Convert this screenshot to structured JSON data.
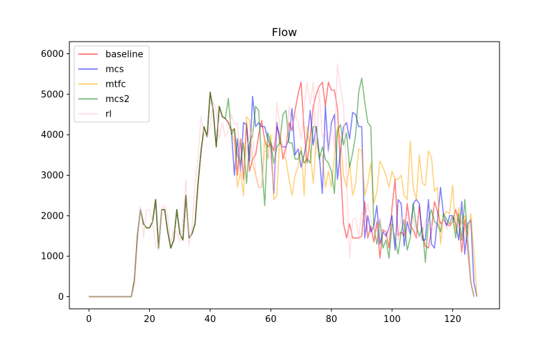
{
  "chart_data": {
    "type": "line",
    "title": "Flow",
    "xlabel": "",
    "ylabel": "",
    "xlim": [
      -6.45,
      135.45
    ],
    "ylim": [
      -300,
      6300
    ],
    "xticks": [
      0,
      20,
      40,
      60,
      80,
      100,
      120
    ],
    "yticks": [
      0,
      1000,
      2000,
      3000,
      4000,
      5000,
      6000
    ],
    "grid": false,
    "legend_position": "top-left",
    "series": [
      {
        "name": "baseline",
        "color": "#ff0000",
        "alpha": 0.5,
        "values": [
          0,
          0,
          0,
          0,
          0,
          0,
          0,
          0,
          0,
          0,
          0,
          0,
          0,
          0,
          0,
          400,
          1500,
          2150,
          1800,
          1700,
          1700,
          1850,
          2400,
          1200,
          2150,
          2150,
          1600,
          1200,
          1400,
          2150,
          1550,
          1400,
          2500,
          1450,
          1550,
          1800,
          2800,
          3600,
          4200,
          3950,
          5050,
          4600,
          3700,
          4700,
          4450,
          4400,
          4300,
          4100,
          4150,
          3000,
          3900,
          2900,
          4300,
          3100,
          3400,
          3500,
          4000,
          4350,
          3850,
          3700,
          3800,
          3600,
          4200,
          4000,
          3400,
          3700,
          4300,
          4100,
          4600,
          5000,
          5300,
          4100,
          3300,
          3900,
          4700,
          5000,
          5200,
          5300,
          4700,
          5300,
          5100,
          5100,
          4650,
          3200,
          1800,
          1450,
          1800,
          1450,
          1450,
          1450,
          1500,
          2350,
          1450,
          1750,
          1350,
          1850,
          950,
          1650,
          1600,
          1200,
          2200,
          2900,
          1500,
          1600,
          1500,
          2300,
          1750,
          1650,
          1450,
          2250,
          1550,
          1250,
          1200,
          1650,
          2350,
          2100,
          1800,
          1900,
          1800,
          1750,
          1850,
          2150,
          1850,
          1100,
          1900,
          1150,
          350,
          0
        ]
      },
      {
        "name": "mcs",
        "color": "#0000ff",
        "alpha": 0.5,
        "values": [
          0,
          0,
          0,
          0,
          0,
          0,
          0,
          0,
          0,
          0,
          0,
          0,
          0,
          0,
          0,
          400,
          1500,
          2150,
          1800,
          1700,
          1700,
          1850,
          2400,
          1200,
          2150,
          2150,
          1600,
          1200,
          1400,
          2150,
          1550,
          1400,
          2500,
          1450,
          1550,
          1800,
          2800,
          3600,
          4200,
          3950,
          5050,
          4600,
          3700,
          4700,
          4450,
          4400,
          4300,
          4100,
          3000,
          3900,
          3100,
          4300,
          4250,
          3350,
          4950,
          4200,
          4300,
          4200,
          4200,
          3900,
          3700,
          2550,
          4300,
          3800,
          3700,
          3700,
          3900,
          4650,
          3500,
          3650,
          3200,
          3500,
          3900,
          4600,
          3750,
          4200,
          3500,
          2550,
          4700,
          3600,
          4300,
          4500,
          2900,
          3600,
          4200,
          4300,
          3900,
          4550,
          4500,
          4200,
          4200,
          1450,
          2000,
          1600,
          1750,
          2250,
          1300,
          1600,
          1500,
          1700,
          2000,
          1150,
          2400,
          2300,
          1250,
          1850,
          1550,
          2300,
          2400,
          2300,
          1400,
          1400,
          2400,
          1300,
          1200,
          1900,
          2700,
          2000,
          1750,
          2000,
          2000,
          1800,
          1400,
          2350,
          1050,
          1800,
          1900,
          350,
          0
        ]
      },
      {
        "name": "mtfc",
        "color": "#ffa500",
        "alpha": 0.5,
        "values": [
          0,
          0,
          0,
          0,
          0,
          0,
          0,
          0,
          0,
          0,
          0,
          0,
          0,
          0,
          0,
          400,
          1500,
          2150,
          1800,
          1700,
          1700,
          1850,
          2400,
          1200,
          2150,
          2150,
          1600,
          1200,
          1400,
          2150,
          1550,
          1400,
          2500,
          1450,
          1550,
          1800,
          2800,
          3600,
          4200,
          3950,
          5050,
          4600,
          3700,
          4700,
          4450,
          4400,
          4300,
          4100,
          3800,
          2700,
          3100,
          2500,
          4450,
          4350,
          3300,
          3000,
          2700,
          2700,
          3900,
          3400,
          4000,
          2400,
          2500,
          4000,
          3500,
          3400,
          2900,
          2500,
          3000,
          3200,
          3700,
          2500,
          4200,
          3600,
          2800,
          3900,
          3500,
          3500,
          2700,
          3100,
          2700,
          3500,
          4200,
          3900,
          3000,
          2700,
          3300,
          2500,
          2800,
          3650,
          3600,
          2500,
          2800,
          3300,
          2300,
          2600,
          3350,
          3200,
          3000,
          2700,
          3100,
          2900,
          2900,
          3000,
          2500,
          2400,
          3850,
          2700,
          2400,
          3500,
          2800,
          2750,
          3600,
          3450,
          2600,
          2700,
          1300,
          2000,
          2100,
          2050,
          2750,
          1600,
          2200,
          1800,
          2000,
          1500,
          2050,
          1100,
          0
        ]
      },
      {
        "name": "mcs2",
        "color": "#008000",
        "alpha": 0.5,
        "values": [
          0,
          0,
          0,
          0,
          0,
          0,
          0,
          0,
          0,
          0,
          0,
          0,
          0,
          0,
          0,
          400,
          1500,
          2150,
          1800,
          1700,
          1700,
          1850,
          2400,
          1200,
          2150,
          2150,
          1600,
          1200,
          1400,
          2150,
          1550,
          1400,
          2500,
          1450,
          1550,
          1800,
          2800,
          3600,
          4200,
          3950,
          5050,
          4600,
          3700,
          4700,
          4450,
          4400,
          4900,
          4000,
          4150,
          3500,
          3300,
          3800,
          2800,
          3800,
          4000,
          4700,
          4600,
          3300,
          2250,
          4050,
          3800,
          3300,
          3700,
          3800,
          4500,
          4600,
          3800,
          3800,
          3400,
          3400,
          3600,
          3300,
          3400,
          3300,
          4200,
          4200,
          3400,
          3700,
          3400,
          3300,
          3100,
          2550,
          4100,
          4250,
          3750,
          4050,
          3200,
          3550,
          4000,
          5050,
          5400,
          4800,
          4300,
          4200,
          1700,
          1300,
          1900,
          1200,
          1400,
          950,
          1800,
          1400,
          1050,
          1600,
          1900,
          1150,
          1450,
          2300,
          1750,
          1500,
          1700,
          850,
          1900,
          2150,
          1850,
          1800,
          1600,
          2050,
          1900,
          1800,
          2000,
          1450,
          2050,
          1400,
          2400,
          1400,
          350,
          0
        ]
      },
      {
        "name": "rl",
        "color": "#ffc0cb",
        "alpha": 0.5,
        "values": [
          0,
          0,
          0,
          0,
          0,
          0,
          0,
          0,
          0,
          0,
          0,
          0,
          0,
          0,
          0,
          300,
          1350,
          2250,
          1450,
          2150,
          2150,
          1850,
          1250,
          1150,
          2200,
          2250,
          2000,
          1300,
          1700,
          1600,
          1350,
          1850,
          2900,
          1250,
          1700,
          2800,
          3450,
          4450,
          4000,
          3950,
          4200,
          4800,
          4600,
          3900,
          4300,
          3950,
          4100,
          4500,
          4250,
          4300,
          3100,
          3100,
          3600,
          4000,
          4100,
          3050,
          2700,
          2700,
          3600,
          3550,
          3400,
          2700,
          4800,
          4200,
          3500,
          3450,
          4700,
          4200,
          4500,
          4300,
          3900,
          4650,
          5300,
          4750,
          5300,
          3500,
          5100,
          3950,
          4100,
          3550,
          4200,
          3700,
          5750,
          5200,
          4700,
          3000,
          950,
          1900,
          1950,
          1500,
          2100,
          1900,
          2300,
          1900,
          1700,
          1400,
          1950,
          1500,
          1600,
          1700,
          1750,
          1500,
          1400,
          2000,
          1800,
          2050,
          1650,
          2000,
          1500,
          1450,
          1550,
          1900,
          1800,
          1700,
          1650,
          1950,
          1700,
          1950,
          1650,
          1900,
          2000,
          1950,
          1700,
          1800,
          1700,
          1400,
          350,
          0
        ]
      }
    ]
  }
}
